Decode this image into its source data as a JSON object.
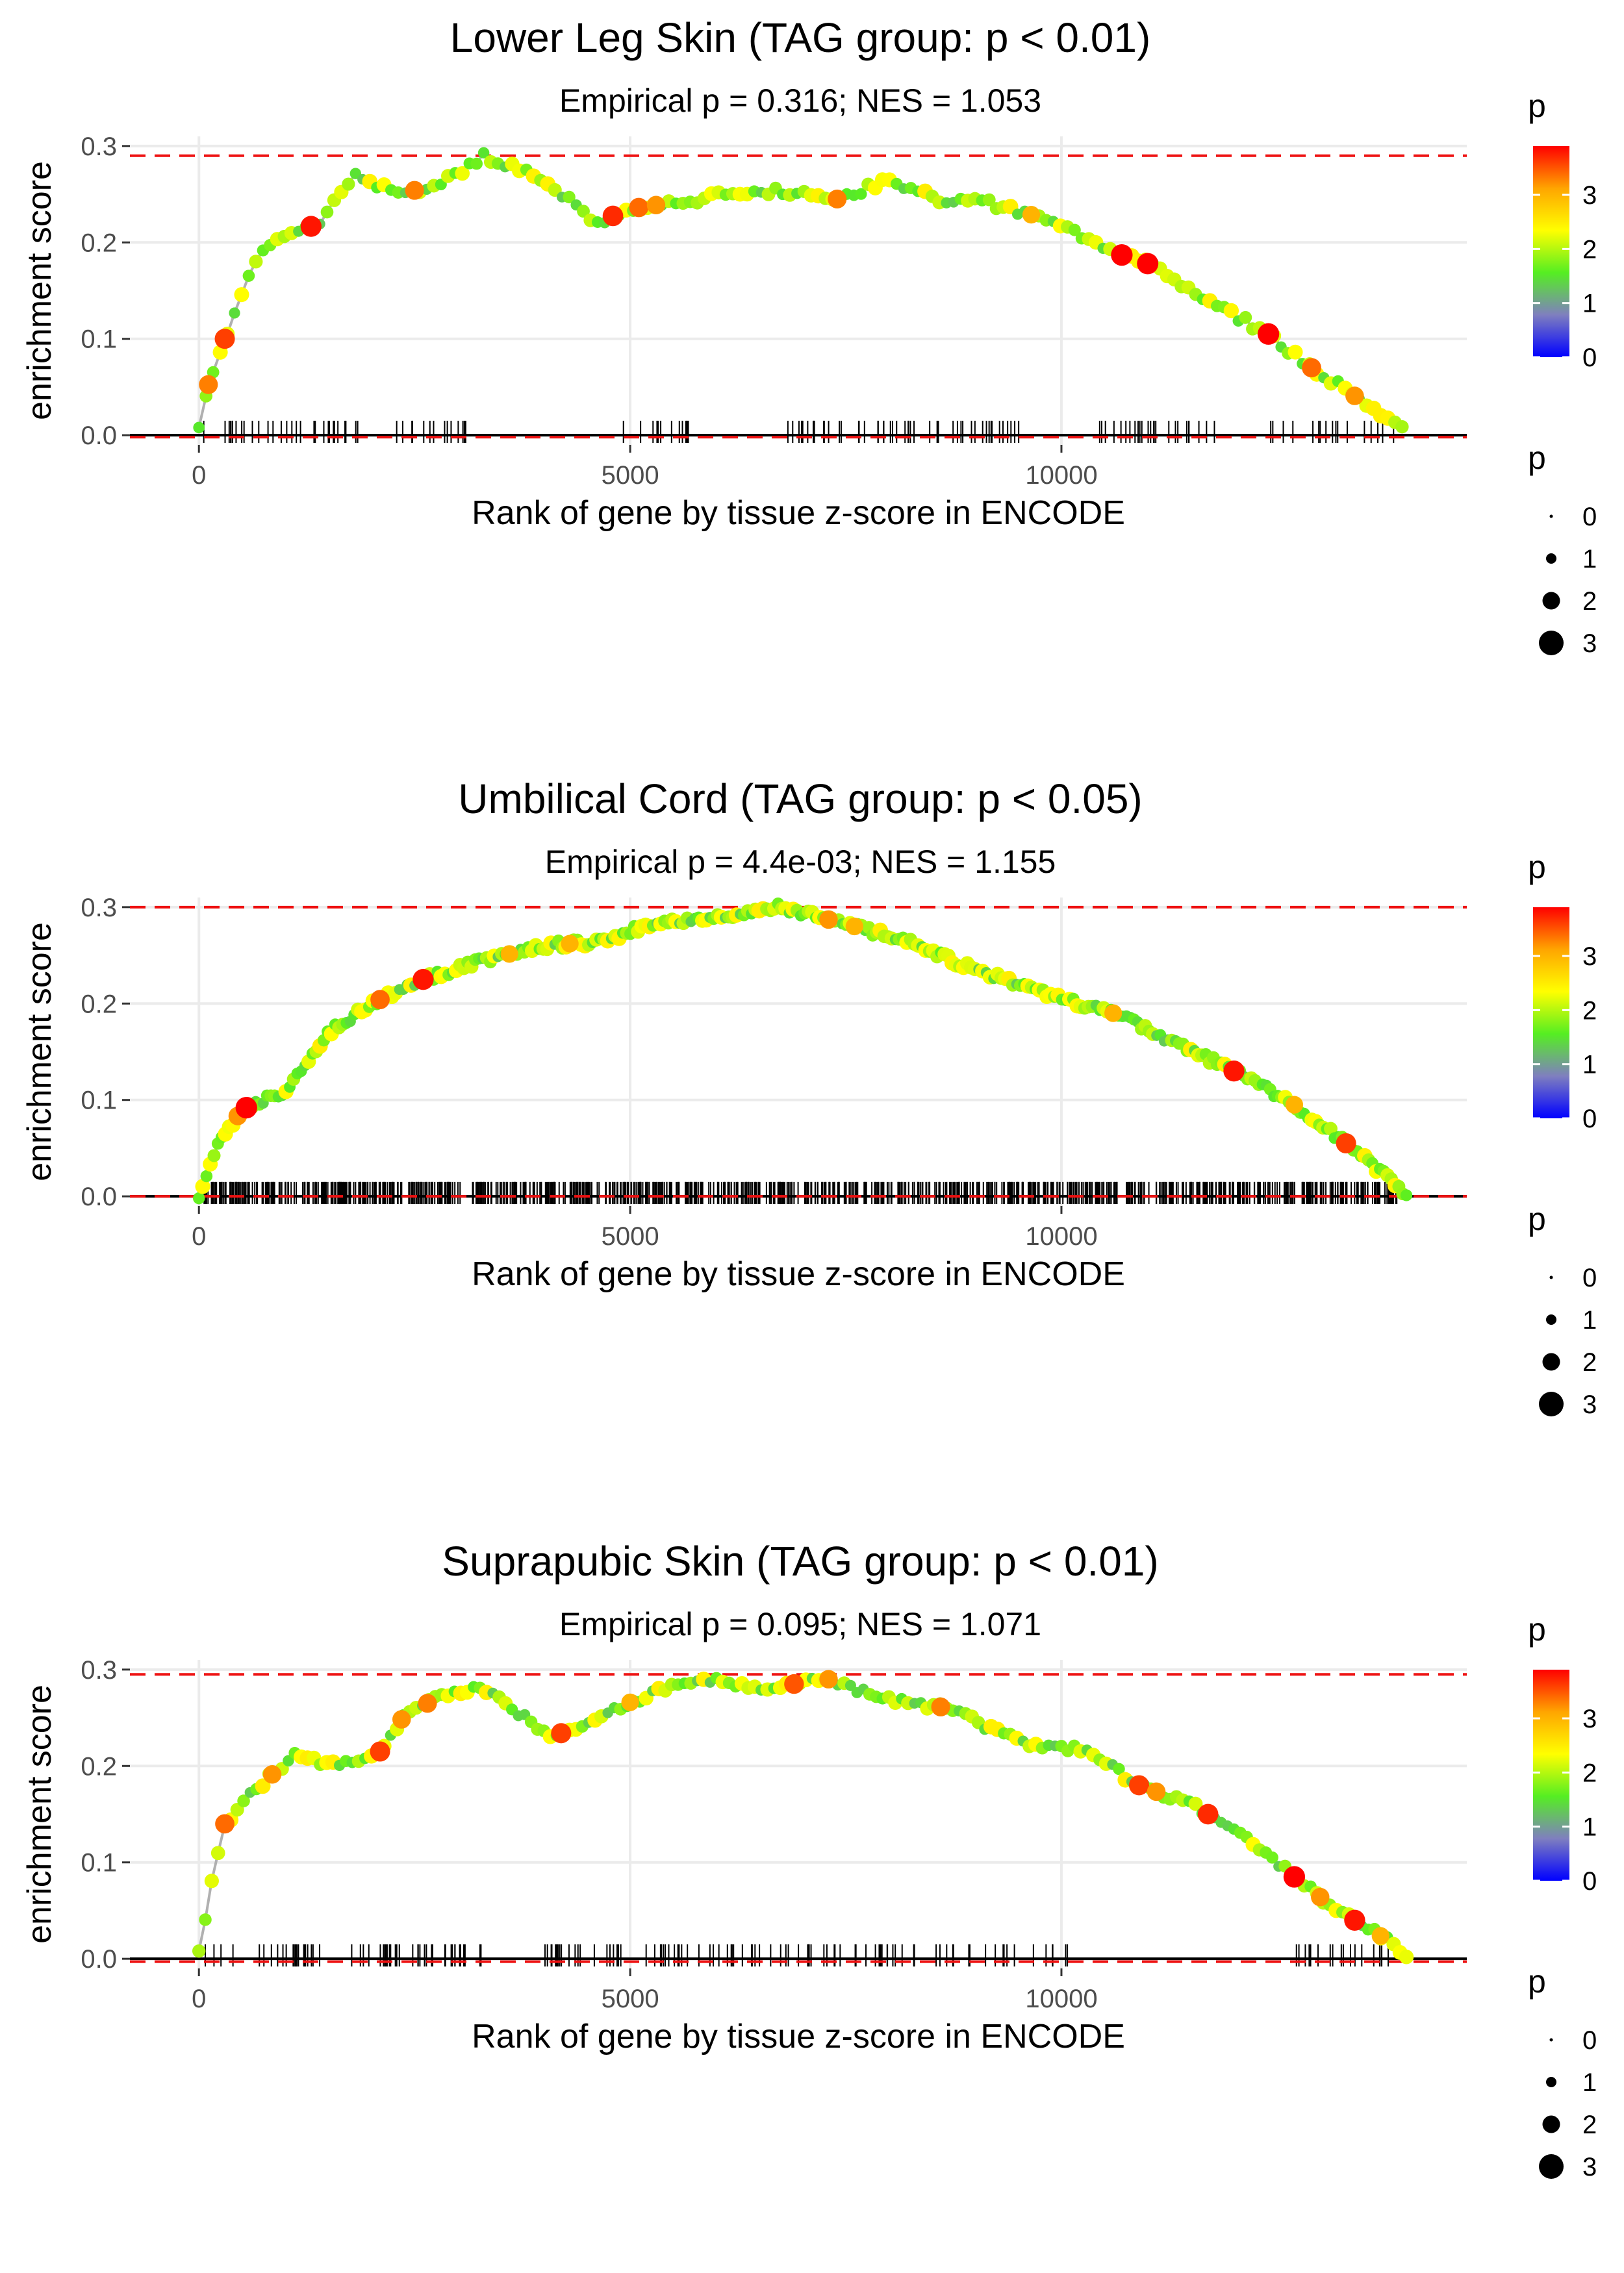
{
  "legend_labels": {
    "color_title": "p",
    "size_title": "p"
  },
  "colors": {
    "threshold_line": "#ee1111",
    "curve": "#b0b0b0",
    "grid": "#ebebeb",
    "zero_line": "#000000",
    "gradient": [
      "#0000ff",
      "#7f7fbf",
      "#55ee22",
      "#ffff00",
      "#ffa500",
      "#ff0000"
    ]
  },
  "chart_data": [
    {
      "type": "scatter",
      "title": "Lower Leg Skin (TAG group: p < 0.01)",
      "subtitle": "Empirical p = 0.316; NES = 1.053",
      "xlabel": "Rank of gene by tissue z-score in ENCODE",
      "ylabel": "enrichment score",
      "xlim": [
        -800,
        14700
      ],
      "ylim": [
        -0.01,
        0.31
      ],
      "xticks": [
        0,
        5000,
        10000
      ],
      "xtick_labels": [
        "0",
        "5000",
        "10000"
      ],
      "yticks": [
        0.0,
        0.1,
        0.2,
        0.3
      ],
      "ytick_labels": [
        "0.0",
        "0.1",
        "0.2",
        "0.3"
      ],
      "threshold_max": 0.29,
      "threshold_min": -0.002,
      "color_scale": {
        "min": 0,
        "max": 3.9,
        "ticks": [
          0,
          1,
          2,
          3
        ],
        "tick_labels": [
          "0",
          "1",
          "2",
          "3"
        ]
      },
      "size_legend": {
        "values": [
          0,
          1,
          2,
          3
        ],
        "labels": [
          "0",
          "1",
          "2",
          "3"
        ]
      },
      "curve_anchors": [
        [
          0,
          0.01
        ],
        [
          100,
          0.05
        ],
        [
          300,
          0.1
        ],
        [
          500,
          0.15
        ],
        [
          800,
          0.2
        ],
        [
          1100,
          0.21
        ],
        [
          1400,
          0.22
        ],
        [
          1800,
          0.27
        ],
        [
          2300,
          0.25
        ],
        [
          2800,
          0.26
        ],
        [
          3300,
          0.29
        ],
        [
          4000,
          0.265
        ],
        [
          4600,
          0.22
        ],
        [
          5000,
          0.235
        ],
        [
          5800,
          0.245
        ],
        [
          6500,
          0.255
        ],
        [
          7400,
          0.245
        ],
        [
          8000,
          0.265
        ],
        [
          8600,
          0.245
        ],
        [
          9200,
          0.24
        ],
        [
          9800,
          0.225
        ],
        [
          10600,
          0.19
        ],
        [
          11100,
          0.175
        ],
        [
          11700,
          0.14
        ],
        [
          12400,
          0.105
        ],
        [
          12900,
          0.07
        ],
        [
          13500,
          0.035
        ],
        [
          13950,
          0.005
        ]
      ],
      "rugs": {
        "spans": [
          [
            50,
            700
          ],
          [
            800,
            1900
          ],
          [
            2200,
            3100
          ],
          [
            4900,
            5700
          ],
          [
            6800,
            9600
          ],
          [
            10400,
            12100
          ],
          [
            12400,
            13900
          ]
        ],
        "count": 150,
        "seed": 11
      },
      "points": {
        "count": 170,
        "highlights": [
          [
            110,
            3.3
          ],
          [
            300,
            3.6
          ],
          [
            1300,
            3.8
          ],
          [
            2500,
            3.3
          ],
          [
            4800,
            3.7
          ],
          [
            5100,
            3.4
          ],
          [
            5300,
            3.2
          ],
          [
            7400,
            3.3
          ],
          [
            9650,
            3.0
          ],
          [
            10700,
            3.95
          ],
          [
            11000,
            3.9
          ],
          [
            12400,
            3.95
          ],
          [
            12900,
            3.4
          ],
          [
            13400,
            3.2
          ]
        ],
        "seed": 21
      }
    },
    {
      "type": "scatter",
      "title": "Umbilical Cord (TAG group: p < 0.05)",
      "subtitle": "Empirical p = 4.4e-03; NES = 1.155",
      "xlabel": "Rank of gene by tissue z-score in ENCODE",
      "ylabel": "enrichment score",
      "xlim": [
        -800,
        14700
      ],
      "ylim": [
        -0.01,
        0.31
      ],
      "xticks": [
        0,
        5000,
        10000
      ],
      "xtick_labels": [
        "0",
        "5000",
        "10000"
      ],
      "yticks": [
        0.0,
        0.1,
        0.2,
        0.3
      ],
      "ytick_labels": [
        "0.0",
        "0.1",
        "0.2",
        "0.3"
      ],
      "threshold_max": 0.3,
      "threshold_min": 0.0,
      "color_scale": {
        "min": 0,
        "max": 3.9,
        "ticks": [
          0,
          1,
          2,
          3
        ],
        "tick_labels": [
          "0",
          "1",
          "2",
          "3"
        ]
      },
      "size_legend": {
        "values": [
          0,
          1,
          2,
          3
        ],
        "labels": [
          "0",
          "1",
          "2",
          "3"
        ]
      },
      "curve_anchors": [
        [
          0,
          0.0
        ],
        [
          200,
          0.05
        ],
        [
          500,
          0.09
        ],
        [
          1000,
          0.11
        ],
        [
          1500,
          0.17
        ],
        [
          2000,
          0.2
        ],
        [
          2600,
          0.225
        ],
        [
          3300,
          0.245
        ],
        [
          4000,
          0.26
        ],
        [
          4700,
          0.265
        ],
        [
          5300,
          0.285
        ],
        [
          6000,
          0.29
        ],
        [
          6700,
          0.3
        ],
        [
          7400,
          0.285
        ],
        [
          8200,
          0.265
        ],
        [
          9000,
          0.235
        ],
        [
          9800,
          0.21
        ],
        [
          10600,
          0.19
        ],
        [
          11300,
          0.16
        ],
        [
          12000,
          0.13
        ],
        [
          12700,
          0.095
        ],
        [
          13300,
          0.055
        ],
        [
          13900,
          0.01
        ],
        [
          14000,
          0.0
        ]
      ],
      "rugs": {
        "spans": [
          [
            50,
            13900
          ]
        ],
        "count": 900,
        "seed": 7
      },
      "points": {
        "count": 320,
        "highlights": [
          [
            450,
            3.2
          ],
          [
            550,
            3.95
          ],
          [
            2100,
            3.4
          ],
          [
            2600,
            3.8
          ],
          [
            3600,
            3.0
          ],
          [
            4300,
            3.0
          ],
          [
            7300,
            3.2
          ],
          [
            7600,
            3.0
          ],
          [
            10600,
            3.0
          ],
          [
            12000,
            3.8
          ],
          [
            12700,
            3.0
          ],
          [
            13300,
            3.6
          ]
        ],
        "seed": 33
      }
    },
    {
      "type": "scatter",
      "title": "Suprapubic Skin (TAG group: p < 0.01)",
      "subtitle": "Empirical p = 0.095; NES = 1.071",
      "xlabel": "Rank of gene by tissue z-score in ENCODE",
      "ylabel": "enrichment score",
      "xlim": [
        -800,
        14700
      ],
      "ylim": [
        -0.01,
        0.31
      ],
      "xticks": [
        0,
        5000,
        10000
      ],
      "xtick_labels": [
        "0",
        "5000",
        "10000"
      ],
      "yticks": [
        0.0,
        0.1,
        0.2,
        0.3
      ],
      "ytick_labels": [
        "0.0",
        "0.1",
        "0.2",
        "0.3"
      ],
      "threshold_max": 0.295,
      "threshold_min": -0.003,
      "color_scale": {
        "min": 0,
        "max": 3.9,
        "ticks": [
          0,
          1,
          2,
          3
        ],
        "tick_labels": [
          "0",
          "1",
          "2",
          "3"
        ]
      },
      "size_legend": {
        "values": [
          0,
          1,
          2,
          3
        ],
        "labels": [
          "0",
          "1",
          "2",
          "3"
        ]
      },
      "curve_anchors": [
        [
          0,
          0.01
        ],
        [
          150,
          0.08
        ],
        [
          300,
          0.14
        ],
        [
          700,
          0.18
        ],
        [
          1100,
          0.21
        ],
        [
          1600,
          0.2
        ],
        [
          2100,
          0.215
        ],
        [
          2400,
          0.255
        ],
        [
          2900,
          0.275
        ],
        [
          3300,
          0.28
        ],
        [
          4100,
          0.23
        ],
        [
          4600,
          0.25
        ],
        [
          5100,
          0.27
        ],
        [
          5600,
          0.285
        ],
        [
          6000,
          0.29
        ],
        [
          6500,
          0.28
        ],
        [
          7300,
          0.29
        ],
        [
          7900,
          0.27
        ],
        [
          8700,
          0.26
        ],
        [
          9500,
          0.225
        ],
        [
          10300,
          0.215
        ],
        [
          10900,
          0.18
        ],
        [
          11500,
          0.16
        ],
        [
          12000,
          0.135
        ],
        [
          12700,
          0.085
        ],
        [
          13200,
          0.05
        ],
        [
          13600,
          0.03
        ],
        [
          14000,
          0.005
        ]
      ],
      "rugs": {
        "spans": [
          [
            50,
            400
          ],
          [
            700,
            1400
          ],
          [
            1700,
            2000
          ],
          [
            2100,
            3300
          ],
          [
            4000,
            4900
          ],
          [
            5100,
            7500
          ],
          [
            7600,
            10100
          ],
          [
            12700,
            13900
          ]
        ],
        "count": 175,
        "seed": 5
      },
      "points": {
        "count": 190,
        "highlights": [
          [
            300,
            3.4
          ],
          [
            850,
            3.2
          ],
          [
            2100,
            3.6
          ],
          [
            2350,
            3.2
          ],
          [
            2650,
            3.3
          ],
          [
            4200,
            3.6
          ],
          [
            5000,
            3.0
          ],
          [
            6900,
            3.5
          ],
          [
            7300,
            3.2
          ],
          [
            8600,
            3.3
          ],
          [
            10900,
            3.6
          ],
          [
            11100,
            3.2
          ],
          [
            11700,
            3.7
          ],
          [
            12700,
            3.95
          ],
          [
            13000,
            3.2
          ],
          [
            13400,
            3.8
          ],
          [
            13700,
            3.0
          ]
        ],
        "seed": 47
      }
    }
  ]
}
